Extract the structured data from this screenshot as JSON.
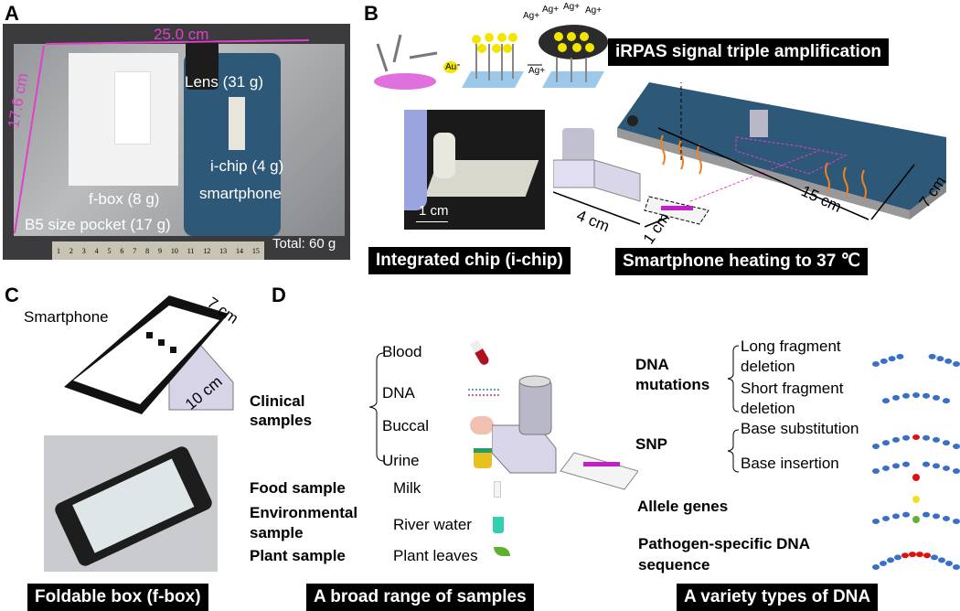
{
  "panelA": {
    "label": "A",
    "width_dim": "25.0 cm",
    "height_dim": "17.6 cm",
    "lens": "Lens (31 g)",
    "ichip": "i-chip (4 g)",
    "smartphone": "smartphone",
    "fbox": "f-box (8 g)",
    "pocket": "B5 size pocket (17 g)",
    "total": "Total: 60 g",
    "ruler_ticks": [
      "1",
      "2",
      "3",
      "4",
      "5",
      "6",
      "7",
      "8",
      "9",
      "10",
      "11",
      "12",
      "13",
      "14",
      "15"
    ]
  },
  "panelB": {
    "label": "B",
    "scheme_labels": {
      "au": "Au",
      "ag_arrow": "Ag+",
      "ag_ions": [
        "Ag+",
        "Ag+",
        "Ag+",
        "Ag+"
      ]
    },
    "banner_irpas": "iRPAS signal triple amplification",
    "scale_bar": "1 cm",
    "banner_chip": "Integrated chip (i-chip)",
    "dim_4cm": "4 cm",
    "dim_1cm": "1 cm",
    "dim_15cm": "15 cm",
    "dim_7cm": "7 cm",
    "banner_heating": "Smartphone heating to 37 ℃"
  },
  "panelC": {
    "label": "C",
    "smartphone": "Smartphone",
    "dim_7cm": "7 cm",
    "dim_10cm": "10 cm",
    "banner": "Foldable box (f-box)"
  },
  "panelD": {
    "label": "D",
    "clinical": "Clinical samples",
    "clinical_items": [
      "Blood",
      "DNA",
      "Buccal",
      "Urine"
    ],
    "food": "Food sample",
    "food_item": "Milk",
    "environmental": "Environmental sample",
    "environmental_item": "River water",
    "plant": "Plant sample",
    "plant_item": "Plant leaves",
    "banner_samples": "A broad range of samples",
    "dna_mutations": "DNA mutations",
    "long_deletion": "Long fragment deletion",
    "short_deletion": "Short fragment deletion",
    "snp": "SNP",
    "base_substitution": "Base substitution",
    "base_insertion": "Base insertion",
    "allele": "Allele genes",
    "pathogen": "Pathogen-specific DNA sequence",
    "banner_dna": "A variety types of DNA"
  },
  "colors": {
    "dimension_pink": "#e040c8",
    "phone_blue": "#2e5877",
    "bead_blue": "#3a6fc8",
    "mutation_red": "#e01010"
  }
}
